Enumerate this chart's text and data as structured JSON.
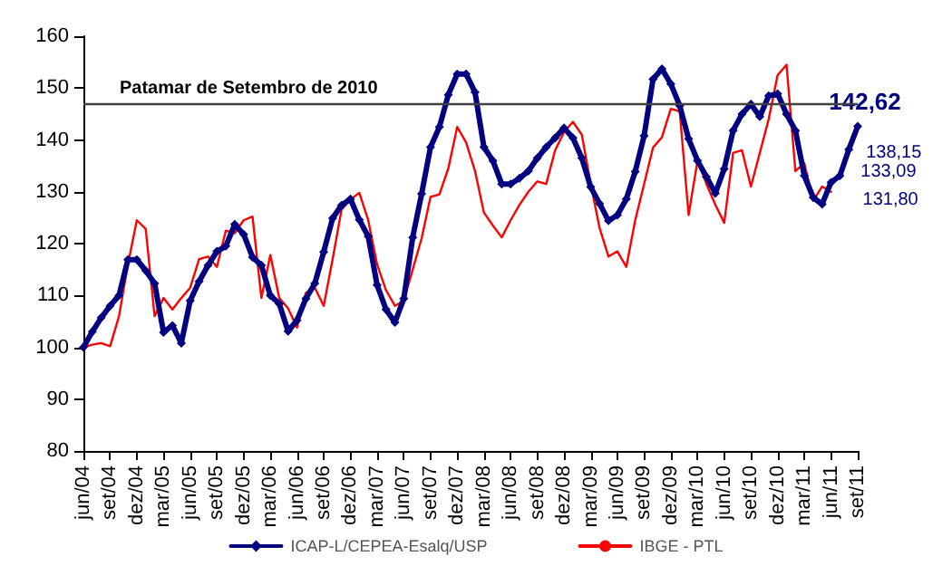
{
  "chart_data": {
    "type": "line",
    "categories": [
      "jun/04",
      null,
      null,
      "set/04",
      null,
      null,
      "dez/04",
      null,
      null,
      "mar/05",
      null,
      null,
      "jun/05",
      null,
      null,
      "set/05",
      null,
      null,
      "dez/05",
      null,
      null,
      "mar/06",
      null,
      null,
      "jun/06",
      null,
      null,
      "set/06",
      null,
      null,
      "dez/06",
      null,
      null,
      "mar/07",
      null,
      null,
      "jun/07",
      null,
      null,
      "set/07",
      null,
      null,
      "dez/07",
      null,
      null,
      "mar/08",
      null,
      null,
      "jun/08",
      null,
      null,
      "set/08",
      null,
      null,
      "dez/08",
      null,
      null,
      "mar/09",
      null,
      null,
      "jun/09",
      null,
      null,
      "set/09",
      null,
      null,
      "dez/09",
      null,
      null,
      "mar/10",
      null,
      null,
      "jun/10",
      null,
      null,
      "set/10",
      null,
      null,
      "dez/10",
      null,
      null,
      "mar/11",
      null,
      null,
      "jun/11",
      null,
      null,
      "set/11"
    ],
    "series": [
      {
        "name": "ICAP-L/CEPEA-Esalq/USP",
        "color": "#000080",
        "marker": "diamond",
        "values": [
          100,
          103,
          105.7,
          108,
          110,
          116.9,
          116.9,
          114.8,
          112.3,
          102.9,
          104.2,
          100.8,
          109,
          112.7,
          115.8,
          118.5,
          119.5,
          123.7,
          121.8,
          117.4,
          115.8,
          110,
          108.4,
          103.1,
          105.2,
          109.4,
          112.3,
          118.4,
          124.9,
          127.4,
          128.6,
          124.6,
          121.4,
          112,
          107.3,
          104.8,
          109.4,
          121.2,
          129.6,
          138.6,
          142.5,
          148.7,
          152.7,
          152.7,
          149.2,
          138.6,
          136,
          131.5,
          131.5,
          132.6,
          134,
          136.5,
          138.6,
          140.4,
          142.3,
          140.4,
          136.5,
          130.9,
          127.7,
          124.4,
          125.5,
          128.6,
          133.9,
          140.8,
          151.7,
          153.7,
          150.8,
          146.6,
          140.2,
          136,
          132.9,
          129.7,
          134.4,
          141.8,
          145,
          146.9,
          144.5,
          148.5,
          148.9,
          145,
          141.8,
          133.1,
          128.9,
          127.6,
          131.8,
          133.09,
          138.15,
          142.62
        ],
        "value_labels": [
          null,
          null,
          null,
          null,
          null,
          null,
          null,
          null,
          null,
          null,
          null,
          null,
          null,
          null,
          null,
          null,
          null,
          null,
          null,
          null,
          null,
          null,
          null,
          null,
          null,
          null,
          null,
          null,
          null,
          null,
          null,
          null,
          null,
          null,
          null,
          null,
          null,
          null,
          null,
          null,
          null,
          null,
          null,
          null,
          null,
          null,
          null,
          null,
          null,
          null,
          null,
          null,
          null,
          null,
          null,
          null,
          null,
          null,
          null,
          null,
          null,
          null,
          null,
          null,
          null,
          null,
          null,
          null,
          null,
          null,
          null,
          null,
          null,
          null,
          null,
          null,
          null,
          null,
          null,
          null,
          null,
          null,
          null,
          null,
          "131,80",
          "133,09",
          "138,15",
          "142,62"
        ]
      },
      {
        "name": "IBGE - PTL",
        "color": "#ff0000",
        "marker": "none",
        "values": [
          100,
          100.5,
          100.8,
          100.2,
          106,
          116,
          124.5,
          122.8,
          106,
          109.5,
          107.3,
          109.5,
          111.5,
          117,
          117.5,
          115.5,
          122.5,
          122,
          124.5,
          125.2,
          109.5,
          117.8,
          109.5,
          107.5,
          103.8,
          110.5,
          111.5,
          108,
          117,
          126.5,
          128.5,
          129.8,
          124.5,
          116,
          111,
          108,
          109,
          115,
          121,
          129,
          129.5,
          134.5,
          142.5,
          139.5,
          134,
          126,
          123.5,
          121.2,
          124.5,
          127.5,
          130,
          132,
          131.5,
          138,
          141.5,
          143.5,
          141,
          131.5,
          123,
          117.5,
          118.5,
          115.5,
          124.5,
          131.5,
          138.5,
          140.5,
          146,
          145.5,
          125.5,
          136,
          131.5,
          127.5,
          124,
          137.5,
          138,
          131,
          137.5,
          144,
          152.5,
          154.5,
          134,
          135.5,
          128.3,
          131,
          130,
          null,
          null,
          null
        ]
      }
    ],
    "ylim": [
      80,
      160
    ],
    "yticks": [
      80,
      90,
      100,
      110,
      120,
      130,
      140,
      150,
      160
    ],
    "ref_lines": [
      {
        "axis": "y",
        "value": 147,
        "label": "Patamar de Setembro de 2010",
        "color": "#404040"
      }
    ],
    "grid": false,
    "legend": "bottom",
    "line_style": "solid"
  }
}
